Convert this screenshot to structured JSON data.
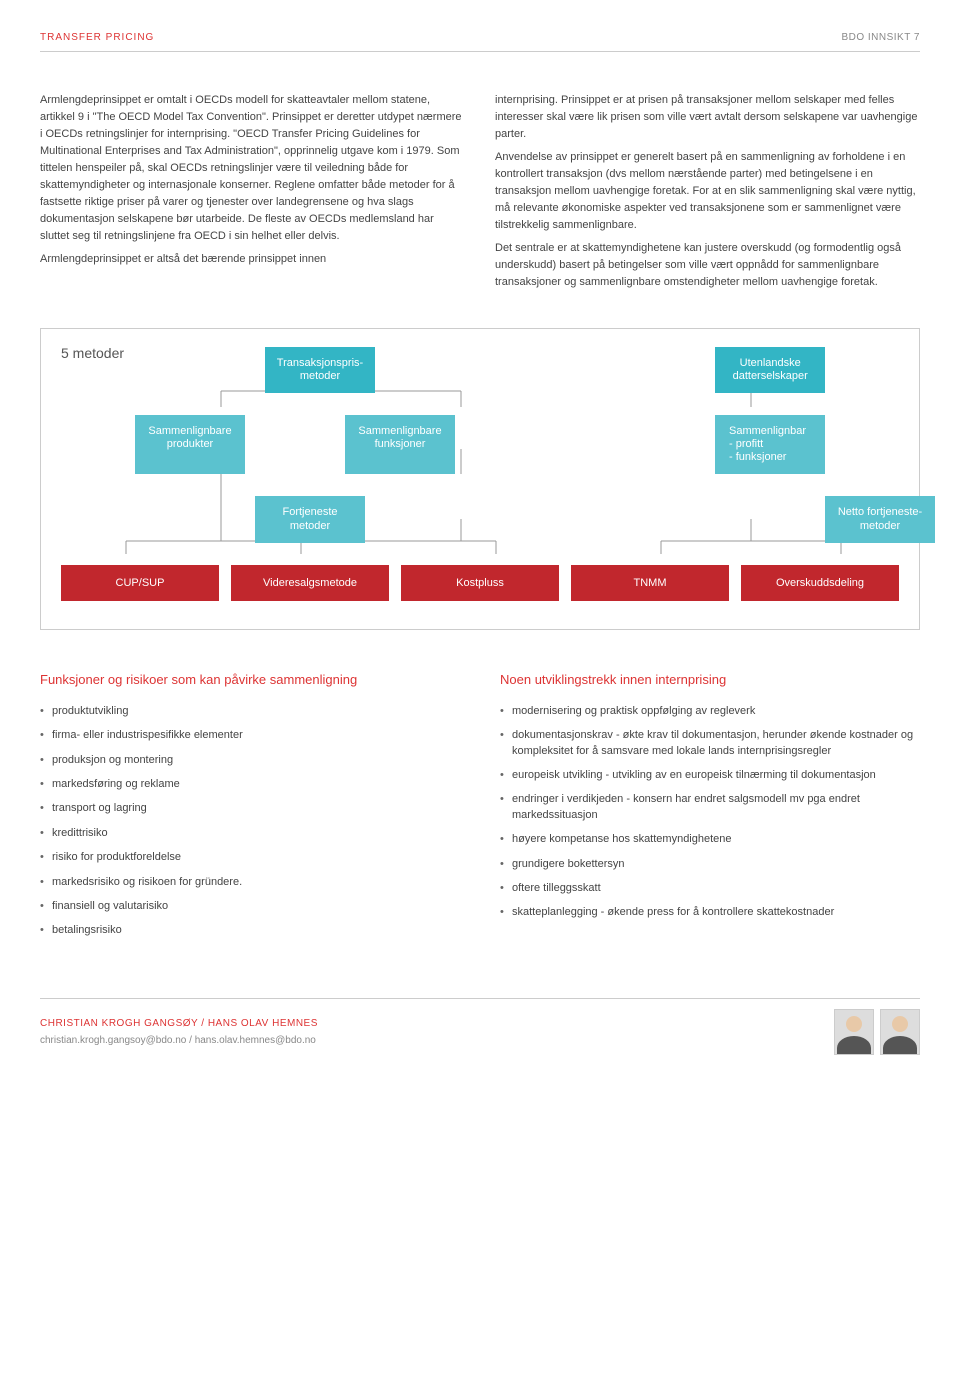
{
  "header": {
    "left": "TRANSFER PRICING",
    "right": "BDO INNSIKT   7"
  },
  "body": {
    "left": "Armlengdeprinsippet er omtalt i OECDs modell for skatteavtaler mellom statene, artikkel 9 i \"The OECD Model Tax Convention\". Prinsippet er deretter utdypet nærmere i OECDs retningslinjer for internprising. \"OECD Transfer Pricing Guidelines for Multinational Enterprises and Tax Administration\", opprinnelig utgave kom i 1979. Som tittelen henspeiler på, skal OECDs retningslinjer være til veiledning både for skattemyndigheter og internasjonale konserner. Reglene omfatter både metoder for å fastsette riktige priser på varer og tjenester over landegrensene og hva slags dokumentasjon selskapene bør utarbeide. De fleste av OECDs medlemsland har sluttet seg til retningslinjene fra OECD i sin helhet eller delvis.",
    "left2": "Armlengdeprinsippet er altså det bærende prinsippet innen",
    "right1": "internprising. Prinsippet er at prisen på transaksjoner mellom selskaper med felles interesser skal være lik prisen som ville vært avtalt dersom selskapene var uavhengige parter.",
    "right2": "Anvendelse av prinsippet er generelt basert på en sammenligning av forholdene i en kontrollert transaksjon (dvs mellom nærstående parter) med betingelsene i en transaksjon mellom uavhengige foretak. For at en slik sammenligning skal være nyttig, må relevante økonomiske aspekter ved transaksjonene som er sammenlignet være tilstrekkelig sammenlignbare.",
    "right3": "Det sentrale er at skattemyndighetene kan justere overskudd (og formodentlig også underskudd) basert på betingelser som ville vært oppnådd for sammenlignbare transaksjoner og sammenlignbare omstendigheter mellom uavhengige foretak."
  },
  "diagram": {
    "title": "5 metoder",
    "l1a": "Transaksjonspris-\nmetoder",
    "l1b": "Utenlandske\ndatterselskaper",
    "l2a": "Sammenlignbare\nprodukter",
    "l2b": "Sammenlignbare\nfunksjoner",
    "l2c": "Sammenlignbar\n- profitt\n- funksjoner",
    "l3a": "Fortjeneste\nmetoder",
    "l3b": "Netto fortjeneste-\nmetoder",
    "l4a": "CUP/SUP",
    "l4b": "Videresalgsmetode",
    "l4c": "Kostpluss",
    "l4d": "TNMM",
    "l4e": "Overskuddsdeling"
  },
  "lower": {
    "left_title": "Funksjoner og risikoer som kan påvirke sammenligning",
    "left_items": [
      "produktutvikling",
      "firma- eller industrispesifikke elementer",
      "produksjon og montering",
      "markedsføring og reklame",
      "transport og lagring",
      "kredittrisiko",
      "risiko for produktforeldelse",
      "markedsrisiko og risikoen for gründere.",
      "finansiell og valutarisiko",
      "betalingsrisiko"
    ],
    "right_title": "Noen utviklingstrekk innen internprising",
    "right_items": [
      "modernisering og praktisk oppfølging av regleverk",
      "dokumentasjonskrav - økte krav til dokumentasjon, herunder økende kostnader og kompleksitet for å samsvare med lokale lands internprisingsregler",
      "europeisk utvikling - utvikling av en europeisk tilnærming til dokumentasjon",
      "endringer i verdikjeden - konsern har endret salgsmodell mv pga endret markedssituasjon",
      "høyere kompetanse hos skattemyndighetene",
      "grundigere bokettersyn",
      "oftere tilleggsskatt",
      "skatteplanlegging - økende press for å kontrollere skattekostnader"
    ]
  },
  "footer": {
    "name": "CHRISTIAN KROGH GANGSØY / HANS OLAV HEMNES",
    "email": "christian.krogh.gangsoy@bdo.no / hans.olav.hemnes@bdo.no"
  },
  "colors": {
    "accent": "#d33",
    "teal": "#33b5c5",
    "teal_light": "#5bc2cf",
    "red_box": "#c1272d"
  }
}
